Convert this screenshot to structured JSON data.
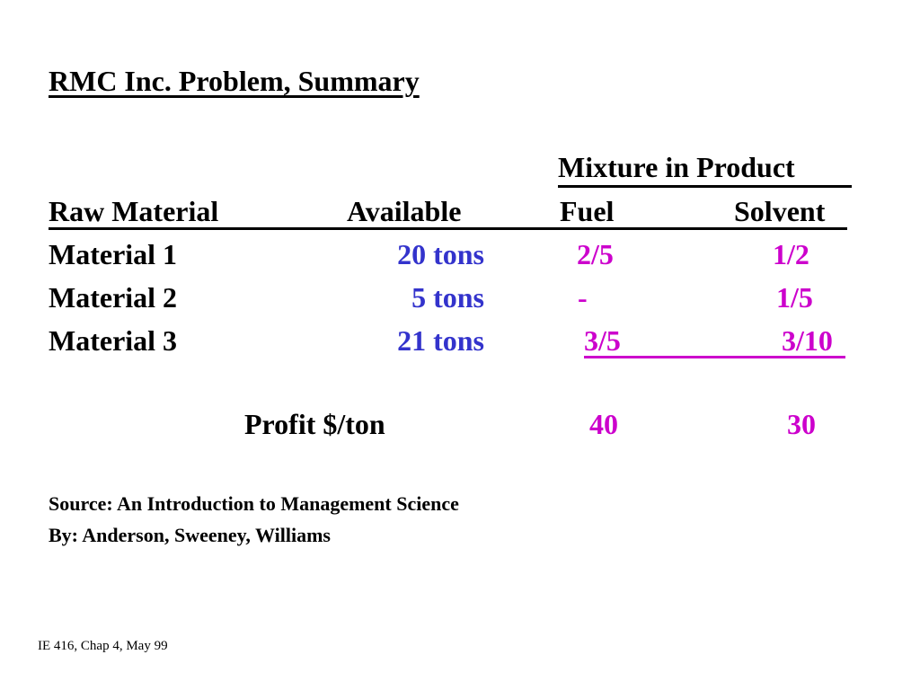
{
  "title": "RMC Inc. Problem, Summary",
  "table": {
    "group_header": "Mixture in Product",
    "headers": {
      "raw_material": "Raw Material",
      "available": "Available",
      "fuel": "Fuel",
      "solvent": "Solvent"
    },
    "rows": [
      {
        "material": "Material 1",
        "available": "20 tons",
        "fuel": "2/5",
        "solvent": "1/2"
      },
      {
        "material": "Material 2",
        "available": "5 tons",
        "fuel": "-",
        "solvent": "1/5"
      },
      {
        "material": "Material 3",
        "available": "21 tons",
        "fuel": "3/5",
        "solvent": "3/10"
      }
    ],
    "profit": {
      "label": "Profit $/ton",
      "fuel": "40",
      "solvent": "30"
    }
  },
  "source": {
    "line1": "Source: An Introduction to Management Science",
    "line2": "By: Anderson, Sweeney, Williams"
  },
  "footer": "IE 416, Chap 4, May 99",
  "colors": {
    "available_values": "#3333cc",
    "mixture_values": "#cc00cc",
    "text": "#000000"
  }
}
